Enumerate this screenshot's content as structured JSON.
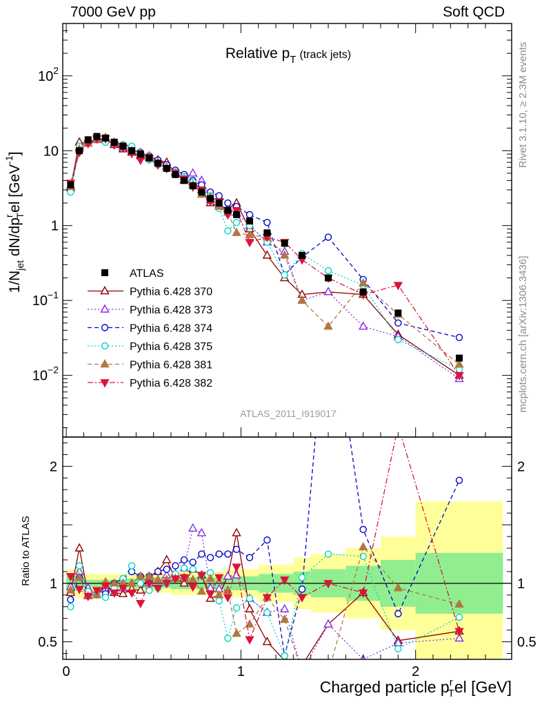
{
  "header": {
    "left": "7000 GeV pp",
    "right": "Soft QCD"
  },
  "side_labels": {
    "rivet": "Rivet 3.1.10, ≥ 2.3M events",
    "mcplots": "mcplots.cern.ch [arXiv:1306.3436]"
  },
  "colors": {
    "ATLAS": "#000000",
    "370": "#8b0000",
    "373": "#8a2be2",
    "374": "#0000cd",
    "375": "#00d5c8",
    "381": "#b07840",
    "382": "#dc143c",
    "band_inner": "#90ee90",
    "band_outer": "#ffff99"
  },
  "chart_data": [
    {
      "type": "line",
      "panel": "main",
      "title_main": "Relative p",
      "title_sub": "T",
      "title_suffix": "(track jets)",
      "ylabel_text": "1/N",
      "ylabel_sub1": "jet",
      "ylabel_mid": " dN/dp",
      "ylabel_sup2": "r",
      "ylabel_sub2": "T",
      "ylabel_rest": "el [GeV",
      "ylabel_sup3": "-1",
      "ylabel_close": "]",
      "watermark": "ATLAS_2011_I919017",
      "yscale": "log",
      "xlim": [
        -0.02,
        2.55
      ],
      "ylim": [
        0.0015,
        500
      ],
      "y_tick_labels": [
        {
          "value": 0.01,
          "base": "10",
          "exp": "−2"
        },
        {
          "value": 0.1,
          "base": "10",
          "exp": "−1"
        },
        {
          "value": 1,
          "base": "1",
          "exp": ""
        },
        {
          "value": 10,
          "base": "10",
          "exp": ""
        },
        {
          "value": 100,
          "base": "10",
          "exp": "2"
        }
      ],
      "legend": [
        {
          "key": "ATLAS",
          "label": "ATLAS"
        },
        {
          "key": "370",
          "label": "Pythia 6.428 370"
        },
        {
          "key": "373",
          "label": "Pythia 6.428 373"
        },
        {
          "key": "374",
          "label": "Pythia 6.428 374"
        },
        {
          "key": "375",
          "label": "Pythia 6.428 375"
        },
        {
          "key": "381",
          "label": "Pythia 6.428 381"
        },
        {
          "key": "382",
          "label": "Pythia 6.428 382"
        }
      ],
      "x": [
        0.025,
        0.075,
        0.125,
        0.175,
        0.225,
        0.275,
        0.325,
        0.375,
        0.425,
        0.475,
        0.525,
        0.575,
        0.625,
        0.675,
        0.725,
        0.775,
        0.825,
        0.875,
        0.925,
        0.975,
        1.05,
        1.15,
        1.25,
        1.35,
        1.5,
        1.7,
        1.9,
        2.25
      ],
      "atlas": [
        3.5,
        10,
        14,
        15.5,
        14.8,
        13,
        11.5,
        10,
        9,
        8,
        6.8,
        5.8,
        4.8,
        4,
        3.4,
        2.8,
        2.3,
        2,
        1.6,
        1.4,
        1.15,
        0.8,
        0.58,
        0.4,
        0.2,
        0.13,
        0.068,
        0.017
      ],
      "series": [
        {
          "key": "370",
          "y": [
            3.2,
            13,
            12.5,
            14,
            14.5,
            12,
            10.5,
            9.5,
            8.5,
            8.5,
            7.5,
            7,
            5,
            4,
            3.8,
            3,
            2,
            1.8,
            1.7,
            2,
            0.9,
            0.4,
            0.2,
            0.12,
            0.13,
            0.12,
            0.035,
            0.01
          ]
        },
        {
          "key": "373",
          "y": [
            3.4,
            11,
            13.5,
            14,
            14,
            12.5,
            11,
            10,
            9.5,
            8,
            7,
            6.2,
            5.2,
            4.5,
            5,
            4,
            2.2,
            1.9,
            1.7,
            1.5,
            1,
            0.6,
            0.45,
            0.1,
            0.13,
            0.045,
            0.033,
            0.009
          ]
        },
        {
          "key": "374",
          "y": [
            3,
            10.5,
            13,
            14,
            13.5,
            13,
            12,
            11,
            9.5,
            8.5,
            7.5,
            6.5,
            5.5,
            4.8,
            4,
            3.5,
            2.8,
            2.5,
            2,
            1.8,
            1.4,
            1.1,
            0.22,
            0.38,
            0.7,
            0.19,
            0.05,
            0.032
          ]
        },
        {
          "key": "375",
          "y": [
            2.8,
            11.5,
            13,
            14,
            13,
            12.5,
            12,
            11.5,
            9,
            7.5,
            6.5,
            5.8,
            5.2,
            4.5,
            3.8,
            3,
            2.5,
            1.7,
            0.85,
            1.1,
            1,
            0.6,
            0.22,
            0.42,
            0.25,
            0.16,
            0.03,
            0.012
          ]
        },
        {
          "key": "381",
          "y": [
            3.3,
            10.5,
            12.5,
            14,
            15,
            13,
            11.5,
            10,
            9.5,
            8.5,
            7,
            6,
            5,
            4.2,
            3.5,
            2.6,
            2.4,
            1.8,
            1.5,
            0.8,
            0.75,
            0.7,
            0.4,
            0.1,
            0.045,
            0.17,
            0.065,
            0.014
          ]
        },
        {
          "key": "382",
          "y": [
            3.7,
            9.5,
            12.5,
            14.5,
            14.5,
            12,
            11,
            9.2,
            7.5,
            8,
            6.5,
            5.8,
            5,
            4.2,
            3.3,
            3,
            2.1,
            2.1,
            1.4,
            1.6,
            0.6,
            0.7,
            0.6,
            0.35,
            0.2,
            0.12,
            0.16,
            0.01
          ]
        }
      ]
    },
    {
      "type": "line",
      "panel": "ratio",
      "ylabel": "Ratio to ATLAS",
      "xlabel_main": "Charged particle p",
      "xlabel_sup": "r",
      "xlabel_sub": "T",
      "xlabel_rest": "el [GeV]",
      "xlim": [
        -0.02,
        2.55
      ],
      "ylim": [
        0.35,
        2.25
      ],
      "x_tick_labels": [
        {
          "value": 0,
          "label": "0"
        },
        {
          "value": 1,
          "label": "1"
        },
        {
          "value": 2,
          "label": "2"
        }
      ],
      "y_tick_labels": [
        {
          "value": 0.5,
          "label": "0.5"
        },
        {
          "value": 1,
          "label": "1"
        },
        {
          "value": 2,
          "label": "2"
        }
      ],
      "band_bins": [
        [
          0.0,
          0.1,
          0.06,
          0.12
        ],
        [
          0.1,
          0.3,
          0.03,
          0.08
        ],
        [
          0.3,
          0.6,
          0.04,
          0.08
        ],
        [
          0.6,
          0.9,
          0.05,
          0.1
        ],
        [
          0.9,
          1.1,
          0.06,
          0.12
        ],
        [
          1.1,
          1.3,
          0.08,
          0.16
        ],
        [
          1.3,
          1.4,
          0.1,
          0.22
        ],
        [
          1.4,
          1.6,
          0.12,
          0.25
        ],
        [
          1.6,
          1.8,
          0.15,
          0.3
        ],
        [
          1.8,
          2.0,
          0.2,
          0.4
        ],
        [
          2.0,
          2.5,
          0.26,
          0.7
        ]
      ],
      "series": [
        {
          "key": "370",
          "y": [
            0.92,
            1.3,
            0.9,
            0.9,
            0.98,
            0.92,
            0.91,
            0.95,
            0.94,
            1.06,
            1.1,
            1.2,
            1.04,
            1.0,
            1.12,
            1.07,
            0.87,
            0.9,
            1.06,
            1.43,
            0.78,
            0.5,
            0.34,
            0.3,
            0.65,
            0.92,
            0.51,
            0.59
          ]
        },
        {
          "key": "373",
          "y": [
            0.97,
            1.1,
            0.96,
            0.9,
            0.95,
            0.96,
            0.96,
            1.0,
            1.06,
            1.0,
            1.03,
            1.07,
            1.08,
            1.13,
            1.47,
            1.43,
            0.96,
            0.95,
            1.06,
            1.07,
            0.87,
            0.75,
            0.78,
            0.25,
            0.65,
            0.35,
            0.49,
            0.53
          ]
        },
        {
          "key": "374",
          "y": [
            0.86,
            1.05,
            0.93,
            0.9,
            0.91,
            1.0,
            1.04,
            1.1,
            1.06,
            1.06,
            1.1,
            1.12,
            1.15,
            1.2,
            1.18,
            1.25,
            1.22,
            1.25,
            1.25,
            1.29,
            1.22,
            1.37,
            0.38,
            0.95,
            3.5,
            1.46,
            0.74,
            1.88
          ]
        },
        {
          "key": "375",
          "y": [
            0.8,
            1.15,
            0.93,
            0.9,
            0.88,
            0.96,
            1.04,
            1.15,
            1.0,
            0.94,
            0.96,
            1.0,
            1.08,
            1.13,
            1.12,
            1.07,
            1.09,
            0.85,
            0.53,
            0.79,
            0.87,
            0.75,
            0.38,
            1.05,
            1.25,
            1.23,
            0.44,
            0.71
          ]
        },
        {
          "key": "381",
          "y": [
            0.94,
            1.05,
            0.89,
            0.9,
            1.01,
            1.0,
            1.0,
            1.0,
            1.06,
            1.06,
            1.03,
            1.03,
            1.04,
            1.05,
            1.03,
            0.93,
            1.04,
            0.9,
            0.94,
            0.57,
            0.65,
            0.88,
            0.69,
            0.25,
            0.23,
            1.31,
            0.96,
            0.82
          ]
        },
        {
          "key": "382",
          "y": [
            1.06,
            0.95,
            0.89,
            0.94,
            0.98,
            0.92,
            0.96,
            0.92,
            0.83,
            1.0,
            0.96,
            1.0,
            1.04,
            1.05,
            0.97,
            1.07,
            0.91,
            1.05,
            0.88,
            1.14,
            0.52,
            0.88,
            1.03,
            0.88,
            1.0,
            0.92,
            2.35,
            0.59
          ]
        }
      ]
    }
  ]
}
